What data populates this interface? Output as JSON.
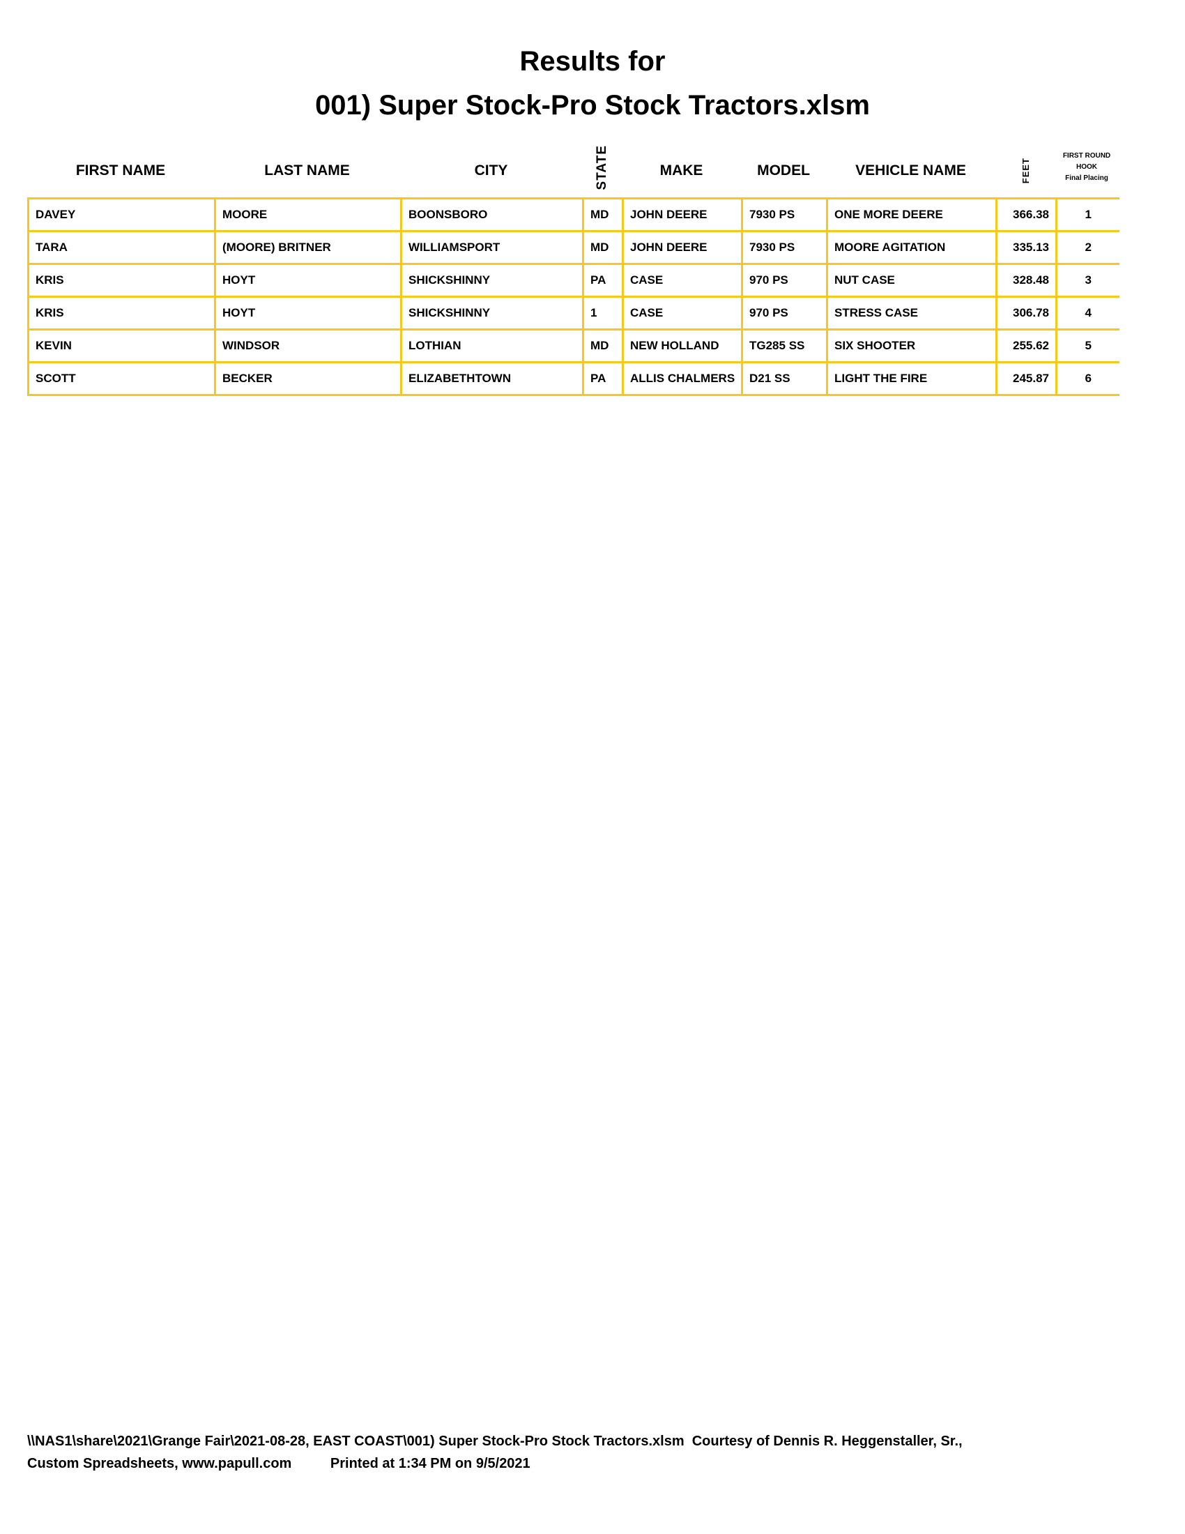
{
  "title_line1": "Results for",
  "title_line2": "001) Super Stock-Pro Stock Tractors.xlsm",
  "colors": {
    "grid": "#f7c81a",
    "text": "#000000"
  },
  "columns": {
    "first_name": "FIRST NAME",
    "last_name": "LAST NAME",
    "city": "CITY",
    "state": "STATE",
    "make": "MAKE",
    "model": "MODEL",
    "vehicle_name": "VEHICLE NAME",
    "feet": "FEET",
    "placing_line1": "FIRST ROUND",
    "placing_line2": "HOOK",
    "placing_line3": "Final Placing"
  },
  "rows": [
    [
      "DAVEY",
      "MOORE",
      "BOONSBORO",
      "MD",
      "JOHN DEERE",
      "7930  PS",
      "ONE MORE DEERE",
      "366.38",
      "1"
    ],
    [
      "TARA",
      "(MOORE) BRITNER",
      "WILLIAMSPORT",
      "MD",
      "JOHN DEERE",
      "7930  PS",
      "MOORE AGITATION",
      "335.13",
      "2"
    ],
    [
      "KRIS",
      "HOYT",
      "SHICKSHINNY",
      "PA",
      "CASE",
      "970  PS",
      "NUT CASE",
      "328.48",
      "3"
    ],
    [
      "KRIS",
      "HOYT",
      "SHICKSHINNY",
      "1",
      "CASE",
      "970  PS",
      "STRESS CASE",
      "306.78",
      "4"
    ],
    [
      "KEVIN",
      "WINDSOR",
      "LOTHIAN",
      "MD",
      "NEW HOLLAND",
      "TG285  SS",
      "SIX SHOOTER",
      "255.62",
      "5"
    ],
    [
      "SCOTT",
      "BECKER",
      "ELIZABETHTOWN",
      "PA",
      "ALLIS CHALMERS",
      "D21  SS",
      "LIGHT THE FIRE",
      "245.87",
      "6"
    ]
  ],
  "footer": {
    "line1": "\\\\NAS1\\share\\2021\\Grange Fair\\2021-08-28, EAST COAST\\001) Super Stock-Pro Stock Tractors.xlsm  Courtesy of Dennis R. Heggenstaller, Sr.,",
    "line2": "Custom Spreadsheets, www.papull.com          Printed at 1:34 PM on 9/5/2021"
  }
}
